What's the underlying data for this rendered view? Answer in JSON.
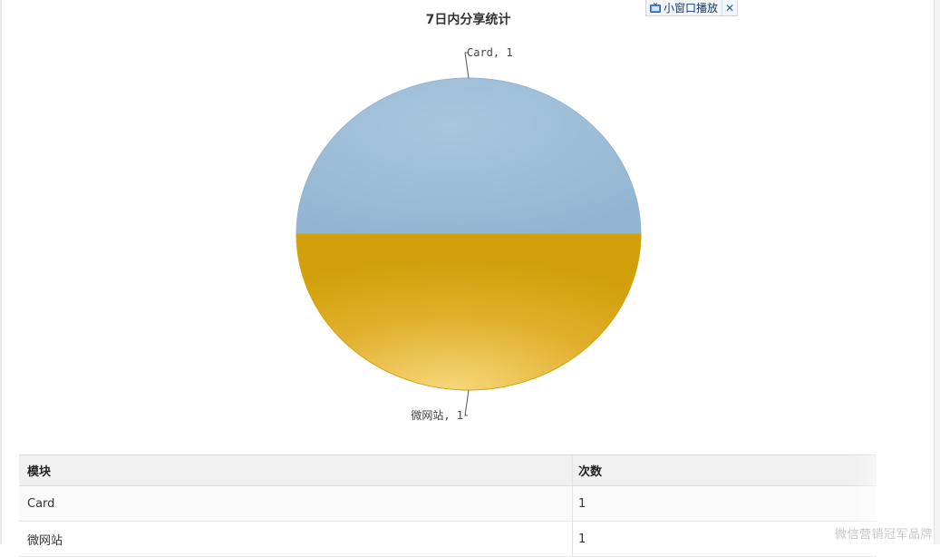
{
  "chart_data": {
    "type": "pie",
    "title": "7日内分享统计",
    "slices": [
      {
        "label": "Card",
        "value": 1,
        "display": "Card, 1",
        "color": "#94b5d2"
      },
      {
        "label": "微网站",
        "value": 1,
        "display": "微网站, 1",
        "color": "#d4a20c"
      }
    ]
  },
  "mini_player": {
    "label": "小窗口播放",
    "icon": "tv-icon",
    "close_glyph": "✕"
  },
  "table": {
    "headers": [
      "模块",
      "次数"
    ],
    "rows": [
      [
        "Card",
        "1"
      ],
      [
        "微网站",
        "1"
      ]
    ]
  },
  "watermark": "微信营销冠军品牌"
}
